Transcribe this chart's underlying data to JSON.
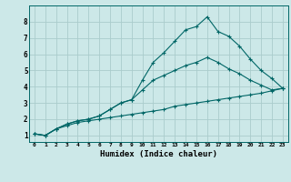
{
  "xlabel": "Humidex (Indice chaleur)",
  "background_color": "#cce8e8",
  "grid_color": "#aacccc",
  "line_color": "#006666",
  "xlim": [
    -0.5,
    23.5
  ],
  "ylim": [
    0.6,
    9.0
  ],
  "yticks": [
    1,
    2,
    3,
    4,
    5,
    6,
    7,
    8
  ],
  "xticks": [
    0,
    1,
    2,
    3,
    4,
    5,
    6,
    7,
    8,
    9,
    10,
    11,
    12,
    13,
    14,
    15,
    16,
    17,
    18,
    19,
    20,
    21,
    22,
    23
  ],
  "line1_x": [
    0,
    1,
    2,
    3,
    4,
    5,
    6,
    7,
    8,
    9,
    10,
    11,
    12,
    13,
    14,
    15,
    16,
    17,
    18,
    19,
    20,
    21,
    22,
    23
  ],
  "line1_y": [
    1.1,
    1.0,
    1.4,
    1.7,
    1.9,
    2.0,
    2.2,
    2.6,
    3.0,
    3.2,
    4.4,
    5.5,
    6.1,
    6.8,
    7.5,
    7.7,
    8.3,
    7.4,
    7.1,
    6.5,
    5.7,
    5.0,
    4.5,
    3.9
  ],
  "line2_x": [
    0,
    1,
    2,
    3,
    4,
    5,
    6,
    7,
    8,
    9,
    10,
    11,
    12,
    13,
    14,
    15,
    16,
    17,
    18,
    19,
    20,
    21,
    22,
    23
  ],
  "line2_y": [
    1.1,
    1.0,
    1.4,
    1.7,
    1.9,
    2.0,
    2.2,
    2.6,
    3.0,
    3.2,
    3.8,
    4.4,
    4.7,
    5.0,
    5.3,
    5.5,
    5.8,
    5.5,
    5.1,
    4.8,
    4.4,
    4.1,
    3.8,
    3.9
  ],
  "line3_x": [
    0,
    1,
    2,
    3,
    4,
    5,
    6,
    7,
    8,
    9,
    10,
    11,
    12,
    13,
    14,
    15,
    16,
    17,
    18,
    19,
    20,
    21,
    22,
    23
  ],
  "line3_y": [
    1.1,
    1.0,
    1.4,
    1.6,
    1.8,
    1.9,
    2.0,
    2.1,
    2.2,
    2.3,
    2.4,
    2.5,
    2.6,
    2.8,
    2.9,
    3.0,
    3.1,
    3.2,
    3.3,
    3.4,
    3.5,
    3.6,
    3.75,
    3.9
  ]
}
